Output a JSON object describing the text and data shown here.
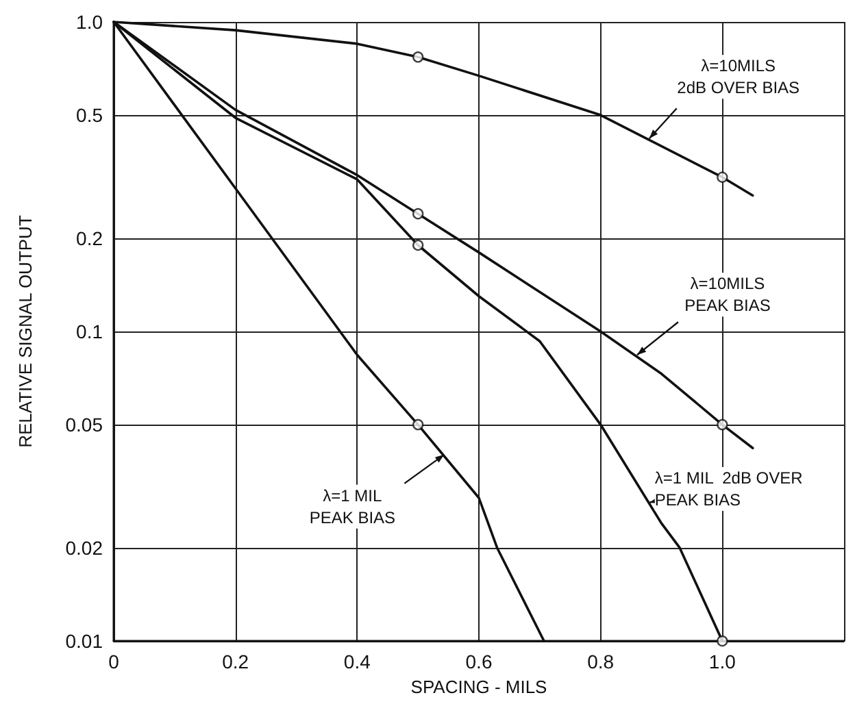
{
  "chart_data": {
    "type": "line",
    "xlabel": "SPACING - MILS",
    "ylabel": "RELATIVE SIGNAL OUTPUT",
    "log": "y",
    "grid": true,
    "marker": "none",
    "line_style": "solid",
    "xlim": [
      0,
      1.2
    ],
    "xticks": [
      0,
      0.2,
      0.4,
      0.6,
      0.8,
      {
        "value": 1,
        "label": "1.0"
      },
      {
        "value": 1.2,
        "label": null
      }
    ],
    "ylim": [
      0.01,
      1
    ],
    "yticks": [
      {
        "value": 1,
        "label": "1.0"
      },
      0.5,
      0.2,
      0.1,
      0.05,
      0.02,
      0.01
    ],
    "series": [
      {
        "color": "#111111",
        "x": [
          0,
          0.2,
          0.4,
          0.5,
          0.6,
          0.8,
          1.0,
          1.05
        ],
        "values": [
          1,
          0.94,
          0.85,
          0.77,
          0.67,
          0.5,
          0.315,
          0.275
        ]
      },
      {
        "color": "#111111",
        "x": [
          0,
          0.2,
          0.4,
          0.5,
          0.6,
          0.8,
          0.9,
          1.0,
          1.05
        ],
        "values": [
          1,
          0.52,
          0.32,
          0.24,
          0.18,
          0.1,
          0.073,
          0.05,
          0.042
        ]
      },
      {
        "color": "#111111",
        "x": [
          0,
          0.2,
          0.4,
          0.5,
          0.6,
          0.7,
          0.8,
          0.9,
          0.93,
          1.0
        ],
        "values": [
          1,
          0.49,
          0.31,
          0.19,
          0.13,
          0.093,
          0.05,
          0.024,
          0.02,
          0.01
        ]
      },
      {
        "color": "#111111",
        "x": [
          0,
          0.2,
          0.4,
          0.5,
          0.6,
          0.63,
          0.707
        ],
        "values": [
          1,
          0.29,
          0.084,
          0.05,
          0.029,
          0.02,
          0.01
        ]
      },
      {
        "type": "scatter",
        "marker": "circle",
        "color": "#111111",
        "x": [
          0.5,
          1.0,
          0.5,
          1.0,
          0.5,
          1.0,
          0.5
        ],
        "values": [
          0.77,
          0.315,
          0.24,
          0.05,
          0.19,
          0.01,
          0.05
        ]
      }
    ],
    "annotations": [
      {
        "text": "λ=10MILS\n2dB OVER BIAS",
        "x": 0.88,
        "y": 0.42
      },
      {
        "text": "λ=10MILS\nPEAK BIAS",
        "x": 0.86,
        "y": 0.084
      },
      {
        "text": "λ=1 MIL  2dB OVER\nPEAK BIAS",
        "x": 0.88,
        "y": 0.028
      },
      {
        "text": "λ=1 MIL\nPEAK BIAS",
        "x": 0.543,
        "y": 0.04
      }
    ]
  }
}
